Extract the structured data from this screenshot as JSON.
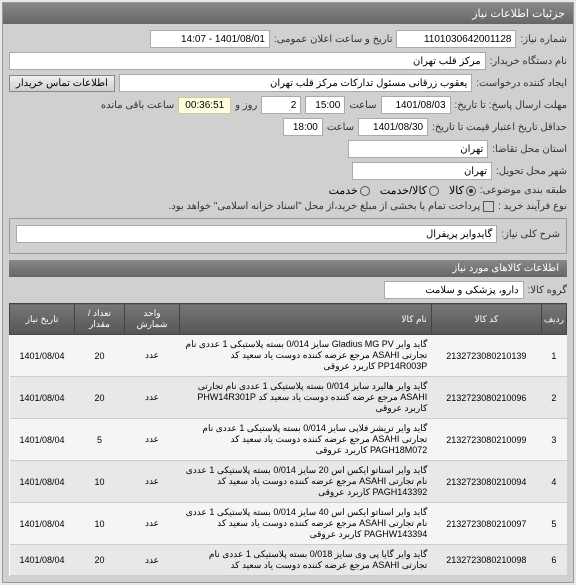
{
  "panel_title": "جزئیات اطلاعات نیاز",
  "labels": {
    "need_no": "شماره نیاز:",
    "announce_dt": "تاریخ و ساعت اعلان عمومی:",
    "buyer": "نام دستگاه خریدار:",
    "requester": "ایجاد کننده درخواست:",
    "contact_btn": "اطلاعات تماس خریدار",
    "deadline": "مهلت ارسال پاسخ: تا تاریخ:",
    "day": "روز و",
    "hour": "ساعت",
    "remaining": "ساعت باقی مانده",
    "valid_from": "حداقل تاریخ اعتبار قیمت تا تاریخ:",
    "request_loc": "استان محل تقاضا:",
    "delivery_loc": "شهر محل تحویل:",
    "category": "طبقه بندی موضوعی:",
    "purchase_type": "نوع فرآیند خرید :",
    "purchase_note": "پرداخت تمام یا بخشی از مبلغ خرید،از محل \"اسناد خزانه اسلامی\" خواهد بود.",
    "need_desc": "شرح کلی نیاز:",
    "goods_group": "گروه کالا:",
    "goods_section": "اطلاعات کالاهای مورد نیاز",
    "cat_goods": "کالا",
    "cat_service": "کالا/خدمت",
    "cat_svc": "خدمت"
  },
  "fields": {
    "need_no": "1101030642001128",
    "announce_dt": "1401/08/01 - 14:07",
    "buyer": "مرکز قلب تهران",
    "requester": "یعقوب زرقانی مسئول تدارکات مرکز قلب تهران",
    "deadline_date": "1401/08/03",
    "deadline_hour": "15:00",
    "deadline_days": "2",
    "timer": "00:36:51",
    "valid_date": "1401/08/30",
    "valid_hour": "18:00",
    "request_loc": "تهران",
    "delivery_loc": "تهران",
    "need_desc": "گایدوایر پریفرال",
    "goods_group": "دارو، پزشکی و سلامت"
  },
  "table": {
    "headers": {
      "row": "ردیف",
      "code": "کد کالا",
      "name": "نام کالا",
      "unit": "واحد شمارش",
      "qty": "تعداد / مقدار",
      "date": "تاریخ نیاز"
    },
    "rows": [
      {
        "n": "1",
        "code": "2132723080210139",
        "name": "گاید وایر Gladius MG PV سایز 0/014 بسته پلاستیکی 1 عددی نام تجارتی ASAHI مرجع عرضه کننده دوست یاد سعید کد PP14R003P کاربرد عروقی",
        "unit": "عدد",
        "qty": "20",
        "date": "1401/08/04"
      },
      {
        "n": "2",
        "code": "2132723080210096",
        "name": "گاید وایر هالبرد سایز 0/014 بسته پلاستیکی 1 عددی نام تجارتی ASAHI مرجع عرضه کننده دوست یاد سعید کد PHW14R301P کاربرد عروقی",
        "unit": "عدد",
        "qty": "20",
        "date": "1401/08/04"
      },
      {
        "n": "3",
        "code": "2132723080210099",
        "name": "گاید وایر تریشر فلاپی سایز 0/014 بسته پلاستیکی 1 عددی نام تجارتی ASAHI مرجع عرضه کننده دوست یاد سعید کد PAGH18M072 کاربرد عروقی",
        "unit": "عدد",
        "qty": "5",
        "date": "1401/08/04"
      },
      {
        "n": "4",
        "code": "2132723080210094",
        "name": "گاید وایر استاتو ایکس اس 20 سایز 0/014 بسته پلاستیکی 1 عددی نام تجارتی ASAHI مرجع عرضه کننده دوست یاد سعید کد PAGH143392 کاربرد عروقی",
        "unit": "عدد",
        "qty": "10",
        "date": "1401/08/04"
      },
      {
        "n": "5",
        "code": "2132723080210097",
        "name": "گاید وایر استاتو ایکس اس 40 سایز 0/014 بسته پلاستیکی 1 عددی نام تجارتی ASAHI مرجع عرضه کننده دوست یاد سعید کد PAGHW143394 کاربرد عروقی",
        "unit": "عدد",
        "qty": "10",
        "date": "1401/08/04"
      },
      {
        "n": "6",
        "code": "2132723080210098",
        "name": "گاید وایر گایا پی وی سایز 0/018 بسته پلاستیکی 1 عددی نام تجارتی ASAHI مرجع عرضه کننده دوست یاد سعید کد",
        "unit": "عدد",
        "qty": "20",
        "date": "1401/08/04"
      }
    ]
  }
}
